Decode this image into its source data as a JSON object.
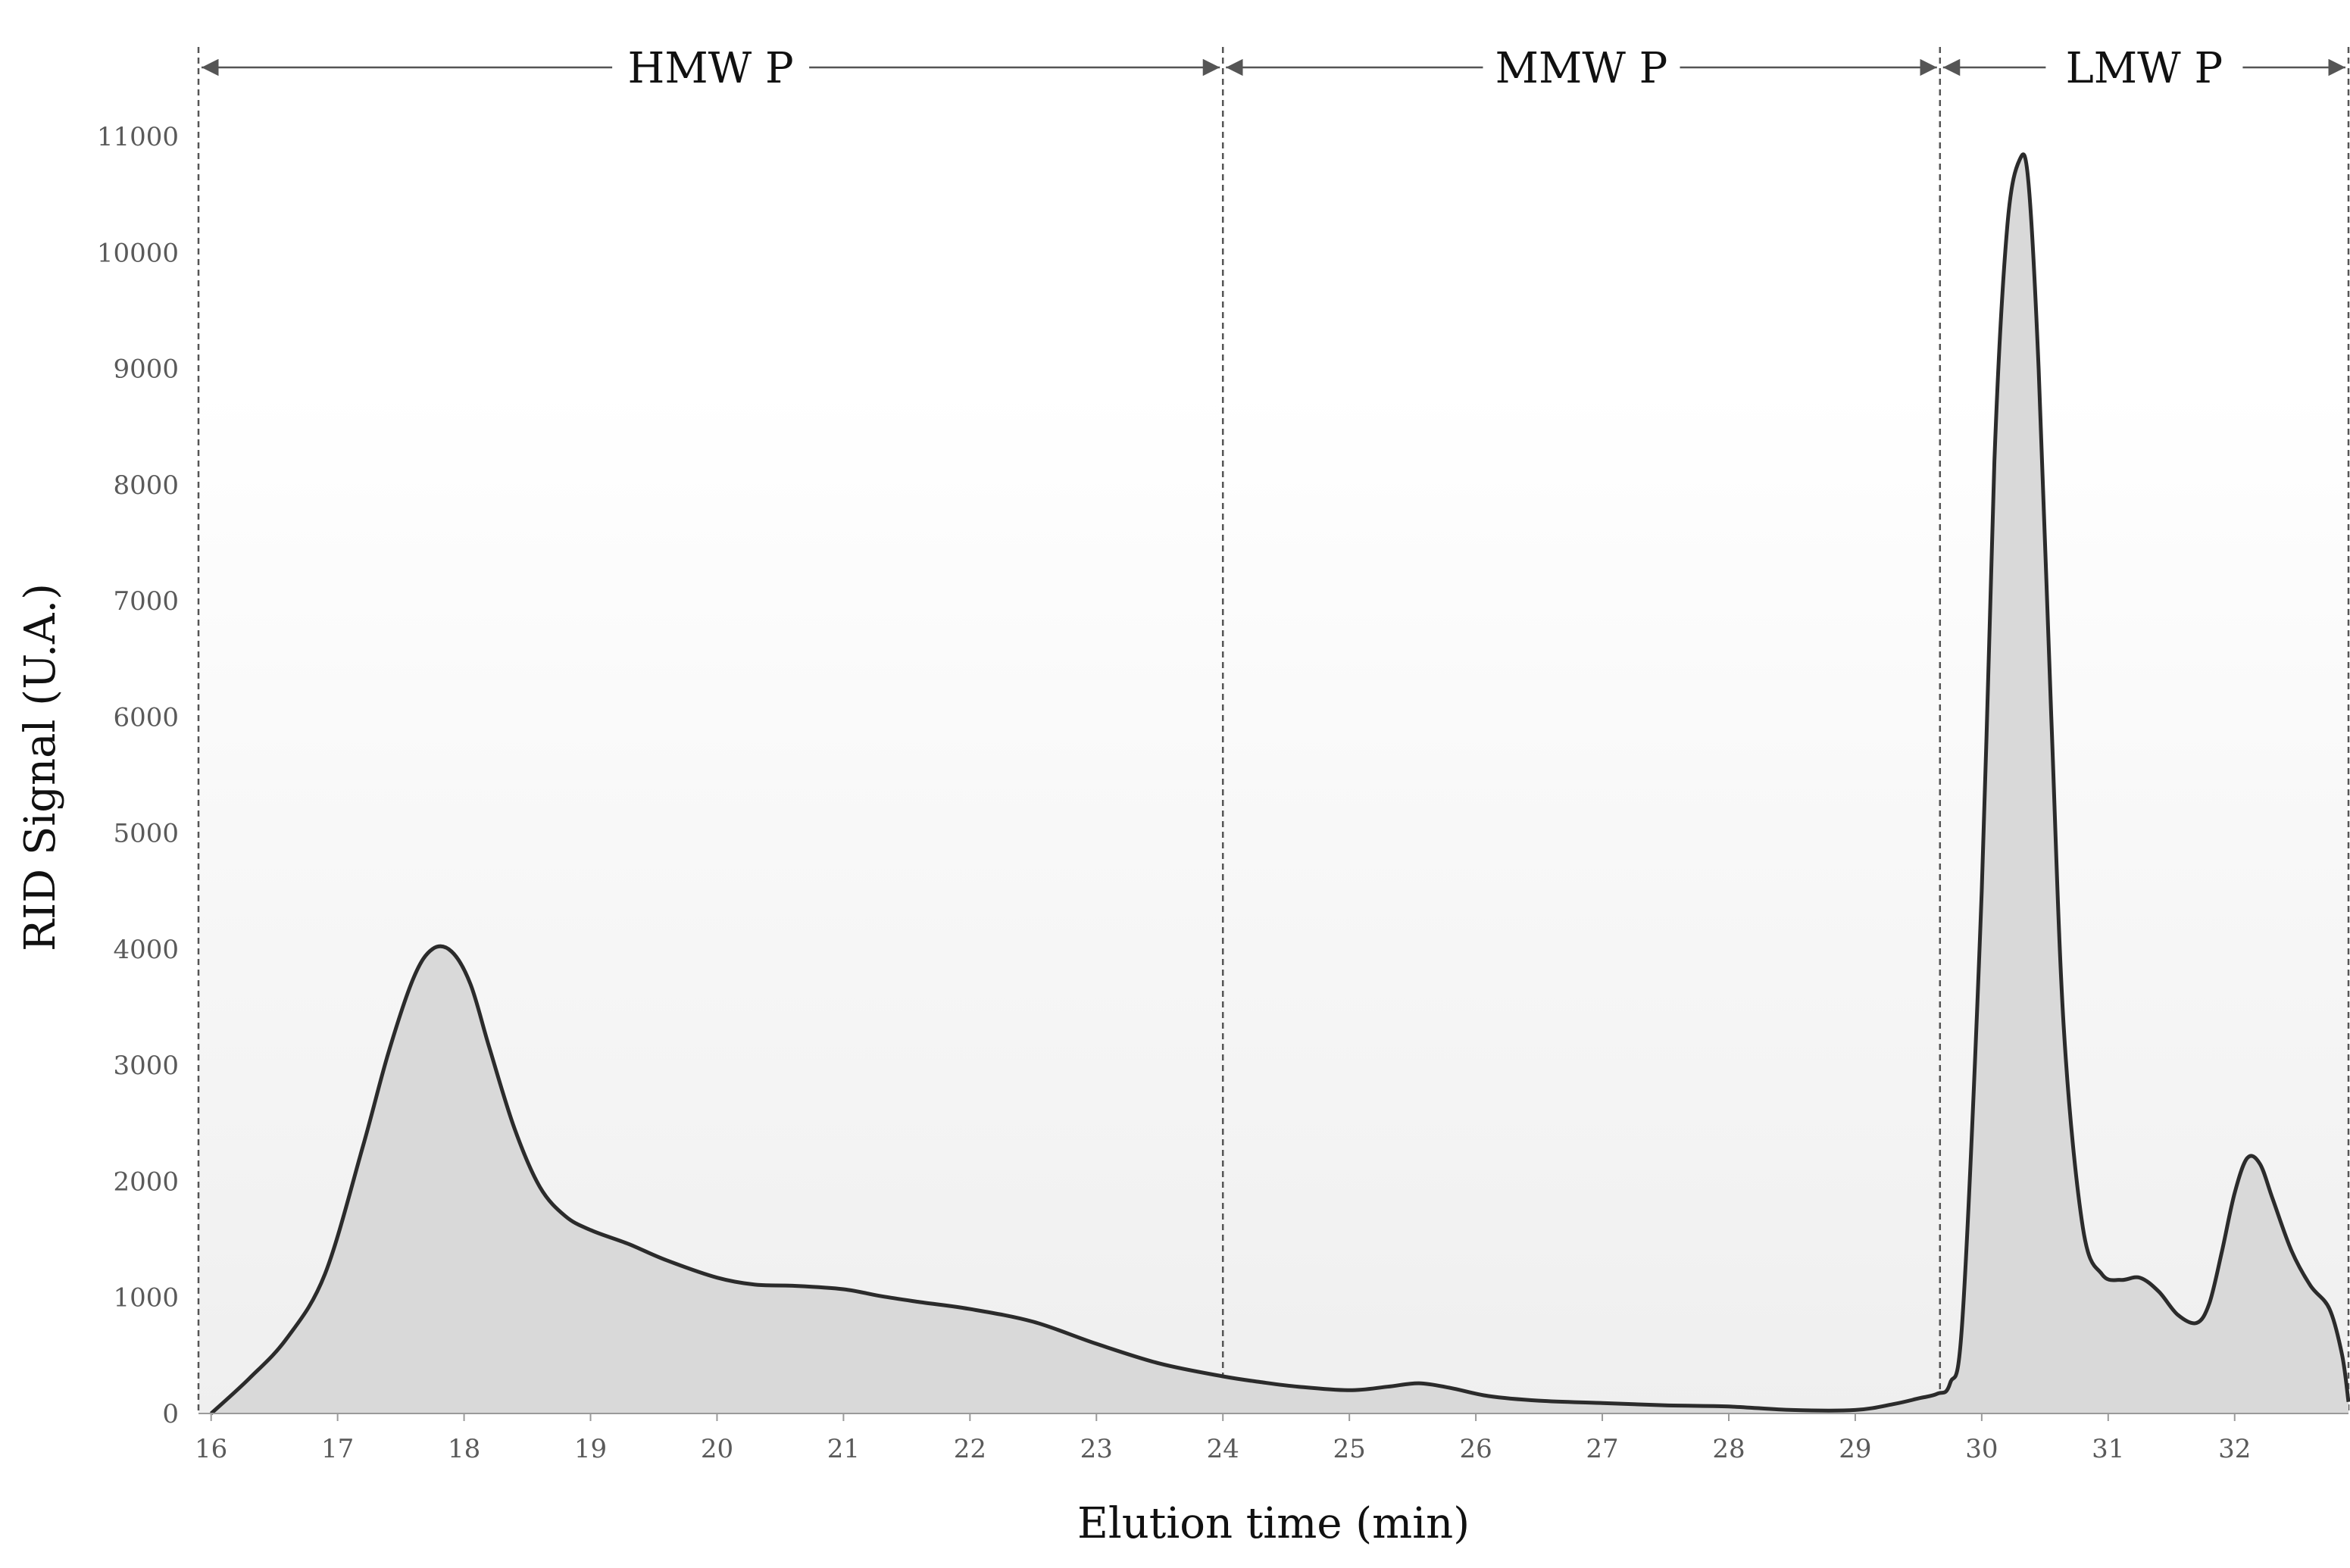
{
  "chart_data": {
    "type": "area",
    "xlabel": "Elution time (min)",
    "ylabel": "RID Signal (U.A.)",
    "xlim": [
      15.9,
      32.9
    ],
    "ylim": [
      0,
      11000
    ],
    "x_ticks": [
      16,
      17,
      18,
      19,
      20,
      21,
      22,
      23,
      24,
      25,
      26,
      27,
      28,
      29,
      30,
      31,
      32
    ],
    "y_ticks": [
      0,
      1000,
      2000,
      3000,
      4000,
      5000,
      6000,
      7000,
      8000,
      9000,
      10000,
      11000
    ],
    "grid": false,
    "legend": "none",
    "colors": {
      "line": "#2b2b2b",
      "fill": "#d9d9d9",
      "bg_top": "#ffffff",
      "bg_bottom": "#efefef",
      "divider": "#555555",
      "arrow": "#555555"
    },
    "regions": [
      {
        "label": "HMW P",
        "x_start": 15.9,
        "x_end": 24.0
      },
      {
        "label": "MMW P",
        "x_start": 24.0,
        "x_end": 29.67
      },
      {
        "label": "LMW P",
        "x_start": 29.67,
        "x_end": 32.9
      }
    ],
    "series": [
      {
        "x": [
          16.0,
          16.3,
          16.6,
          16.9,
          17.2,
          17.4,
          17.6,
          17.75,
          17.9,
          18.05,
          18.2,
          18.4,
          18.6,
          18.8,
          19.0,
          19.3,
          19.6,
          20.0,
          20.3,
          20.6,
          21.0,
          21.3,
          21.6,
          22.0,
          22.5,
          23.0,
          23.5,
          24.0,
          24.3,
          24.6,
          25.0,
          25.3,
          25.55,
          25.8,
          26.1,
          26.5,
          27.0,
          27.5,
          28.0,
          28.5,
          29.0,
          29.3,
          29.5,
          29.65,
          29.75,
          29.85,
          30.0,
          30.1,
          30.2,
          30.3,
          30.37,
          30.45,
          30.55,
          30.65,
          30.8,
          30.95,
          31.1,
          31.25,
          31.4,
          31.55,
          31.7,
          31.8,
          31.9,
          32.0,
          32.1,
          32.2,
          32.3,
          32.45,
          32.6,
          32.75,
          32.85,
          32.9
        ],
        "y": [
          0,
          300,
          650,
          1200,
          2300,
          3100,
          3750,
          4000,
          3980,
          3700,
          3150,
          2450,
          1950,
          1700,
          1580,
          1460,
          1320,
          1170,
          1110,
          1100,
          1070,
          1010,
          960,
          900,
          790,
          600,
          430,
          320,
          270,
          230,
          200,
          230,
          260,
          220,
          150,
          110,
          90,
          70,
          60,
          30,
          30,
          80,
          130,
          170,
          260,
          850,
          4500,
          8200,
          10200,
          10800,
          10600,
          9000,
          6000,
          3300,
          1600,
          1200,
          1150,
          1170,
          1050,
          850,
          780,
          950,
          1400,
          1900,
          2200,
          2150,
          1850,
          1400,
          1100,
          900,
          500,
          100
        ]
      }
    ]
  }
}
